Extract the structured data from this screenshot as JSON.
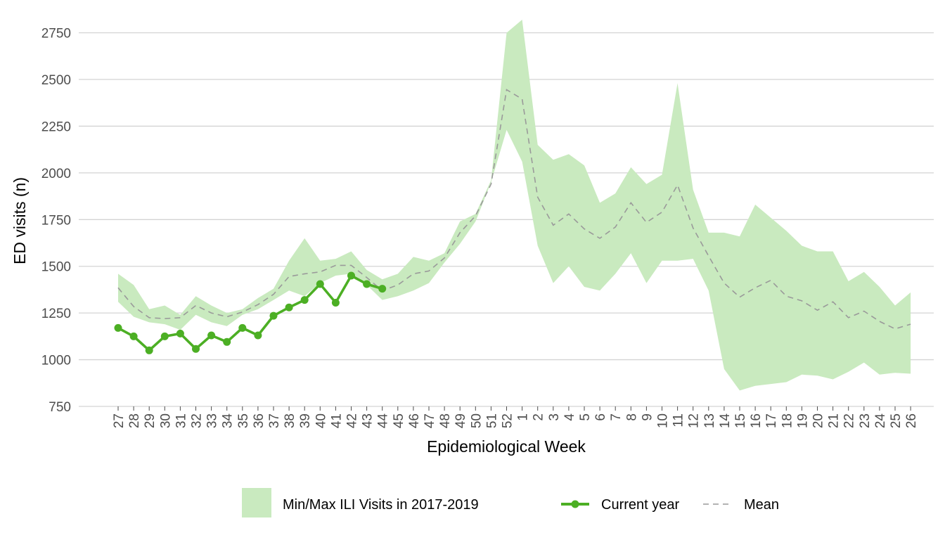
{
  "chart_data": {
    "type": "line",
    "title": "",
    "xlabel": "Epidemiological Week",
    "ylabel": "ED visits (n)",
    "ylim": [
      750,
      2820
    ],
    "y_ticks": [
      750,
      1000,
      1250,
      1500,
      1750,
      2000,
      2250,
      2500,
      2750
    ],
    "grid": "horizontal",
    "legend_position": "bottom",
    "categories": [
      "27",
      "28",
      "29",
      "30",
      "31",
      "32",
      "33",
      "34",
      "35",
      "36",
      "37",
      "38",
      "39",
      "40",
      "41",
      "42",
      "43",
      "44",
      "45",
      "46",
      "47",
      "48",
      "49",
      "50",
      "51",
      "52",
      "1",
      "2",
      "3",
      "4",
      "5",
      "6",
      "7",
      "8",
      "9",
      "10",
      "11",
      "12",
      "13",
      "14",
      "15",
      "16",
      "17",
      "18",
      "19",
      "20",
      "21",
      "22",
      "23",
      "24",
      "25",
      "26"
    ],
    "band": {
      "name": "Min/Max ILI Visits in 2017-2019",
      "color": "#c9eabf",
      "max": [
        1460,
        1400,
        1270,
        1290,
        1240,
        1340,
        1290,
        1250,
        1270,
        1330,
        1380,
        1530,
        1650,
        1530,
        1540,
        1580,
        1480,
        1430,
        1460,
        1550,
        1530,
        1570,
        1740,
        1780,
        1960,
        2750,
        2820,
        2150,
        2070,
        2100,
        2040,
        1840,
        1890,
        2030,
        1940,
        1990,
        2480,
        1910,
        1680,
        1680,
        1660,
        1830,
        1760,
        1690,
        1610,
        1580,
        1580,
        1420,
        1470,
        1390,
        1290,
        1360
      ],
      "min": [
        1310,
        1230,
        1200,
        1190,
        1160,
        1240,
        1200,
        1180,
        1240,
        1270,
        1320,
        1370,
        1340,
        1410,
        1450,
        1460,
        1400,
        1320,
        1340,
        1370,
        1410,
        1520,
        1620,
        1740,
        1950,
        2230,
        2060,
        1610,
        1410,
        1500,
        1390,
        1370,
        1460,
        1570,
        1410,
        1530,
        1530,
        1540,
        1370,
        950,
        835,
        860,
        870,
        880,
        920,
        915,
        895,
        935,
        985,
        920,
        930,
        925
      ]
    },
    "series": [
      {
        "name": "Current year",
        "color": "#4caf24",
        "values": [
          1170,
          1125,
          1050,
          1125,
          1140,
          1058,
          1130,
          1095,
          1170,
          1130,
          1235,
          1280,
          1320,
          1405,
          1305,
          1450,
          1405,
          1380,
          null,
          null,
          null,
          null,
          null,
          null,
          null,
          null,
          null,
          null,
          null,
          null,
          null,
          null,
          null,
          null,
          null,
          null,
          null,
          null,
          null,
          null,
          null,
          null,
          null,
          null,
          null,
          null,
          null,
          null,
          null,
          null,
          null,
          null
        ]
      },
      {
        "name": "Mean",
        "color": "#9a9a9a",
        "style": "dashed",
        "values": [
          1385,
          1285,
          1225,
          1220,
          1225,
          1290,
          1250,
          1230,
          1255,
          1295,
          1350,
          1445,
          1460,
          1470,
          1505,
          1505,
          1440,
          1370,
          1400,
          1460,
          1475,
          1545,
          1680,
          1770,
          1940,
          2445,
          2395,
          1870,
          1720,
          1780,
          1700,
          1650,
          1710,
          1840,
          1735,
          1790,
          1935,
          1705,
          1555,
          1410,
          1335,
          1385,
          1425,
          1340,
          1315,
          1265,
          1310,
          1225,
          1260,
          1205,
          1165,
          1190
        ]
      }
    ]
  }
}
